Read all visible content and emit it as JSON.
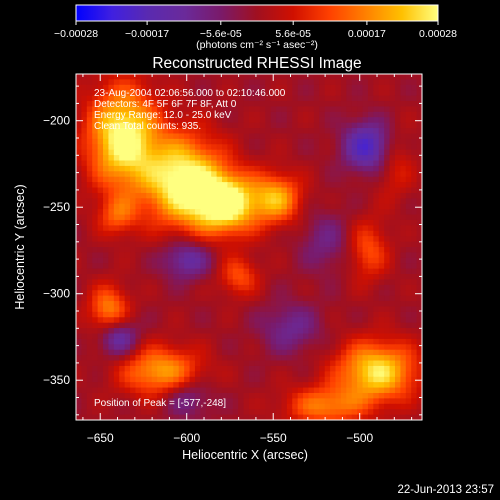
{
  "colorbar": {
    "ticks": [
      "-0.00028",
      "-0.00017",
      "-5.6e-05",
      "5.6e-05",
      "0.00017",
      "0.00028"
    ],
    "units": "(photons cm⁻² s⁻¹ asec⁻²)",
    "stops": [
      "#0000ff",
      "#4020e0",
      "#5a2ab0",
      "#6a2a9a",
      "#7a1a6a",
      "#a01020",
      "#d01000",
      "#ff4000",
      "#ff8000",
      "#ffc000",
      "#ffff80"
    ]
  },
  "info": {
    "line1": "23-Aug-2004 02:06:56.000 to 02:10:46.000",
    "line2": "Detectors: 4F 5F 6F 7F 8F, Att 0",
    "line3": "Energy Range: 12.0 - 25.0 keV",
    "line4": "Clean    Total counts: 935.",
    "peak": "Position of Peak = [-577,-248]"
  },
  "footer": {
    "timestamp": "22-Jun-2013 23:57"
  },
  "chart_data": {
    "type": "heatmap",
    "title": "Reconstructed RHESSI Image",
    "xlabel": "Heliocentric X (arcsec)",
    "ylabel": "Heliocentric Y (arcsec)",
    "xlim": [
      -664,
      -464
    ],
    "ylim": [
      -373,
      -173
    ],
    "xticks": [
      -650,
      -600,
      -550,
      -500
    ],
    "yticks": [
      -200,
      -250,
      -300,
      -350
    ],
    "xtick_labels": [
      "−650",
      "−600",
      "−550",
      "−500"
    ],
    "ytick_labels": [
      "−200",
      "−250",
      "−300",
      "−350"
    ],
    "zlim": [
      -0.00028,
      0.00028
    ],
    "peak_position": [
      -577,
      -248
    ],
    "sources": [
      {
        "x": -637,
        "y": -210,
        "sx": 14,
        "sy": 20,
        "amp": 0.0003
      },
      {
        "x": -602,
        "y": -235,
        "sx": 16,
        "sy": 18,
        "amp": 0.0003
      },
      {
        "x": -577,
        "y": -248,
        "sx": 13,
        "sy": 12,
        "amp": 0.0003
      },
      {
        "x": -548,
        "y": -245,
        "sx": 10,
        "sy": 10,
        "amp": 0.0002
      },
      {
        "x": -490,
        "y": -345,
        "sx": 16,
        "sy": 12,
        "amp": 0.00026
      },
      {
        "x": -615,
        "y": -345,
        "sx": 16,
        "sy": 10,
        "amp": 0.0002
      },
      {
        "x": -645,
        "y": -310,
        "sx": 8,
        "sy": 10,
        "amp": 0.00018
      },
      {
        "x": -495,
        "y": -275,
        "sx": 8,
        "sy": 12,
        "amp": 0.00012
      },
      {
        "x": -520,
        "y": -365,
        "sx": 16,
        "sy": 8,
        "amp": 0.00016
      },
      {
        "x": -570,
        "y": -290,
        "sx": 8,
        "sy": 8,
        "amp": 0.00012
      },
      {
        "x": -480,
        "y": -225,
        "sx": 8,
        "sy": 14,
        "amp": 8e-05
      },
      {
        "x": -640,
        "y": -255,
        "sx": 8,
        "sy": 8,
        "amp": 0.00012
      },
      {
        "x": -495,
        "y": -215,
        "sx": 10,
        "sy": 10,
        "amp": -0.0002
      },
      {
        "x": -600,
        "y": -280,
        "sx": 10,
        "sy": 8,
        "amp": -0.00014
      },
      {
        "x": -640,
        "y": -325,
        "sx": 8,
        "sy": 8,
        "amp": -0.00016
      },
      {
        "x": -540,
        "y": -320,
        "sx": 12,
        "sy": 10,
        "amp": -0.0001
      },
      {
        "x": -600,
        "y": -360,
        "sx": 10,
        "sy": 8,
        "amp": -0.0001
      },
      {
        "x": -520,
        "y": -270,
        "sx": 10,
        "sy": 12,
        "amp": -8e-05
      }
    ]
  }
}
